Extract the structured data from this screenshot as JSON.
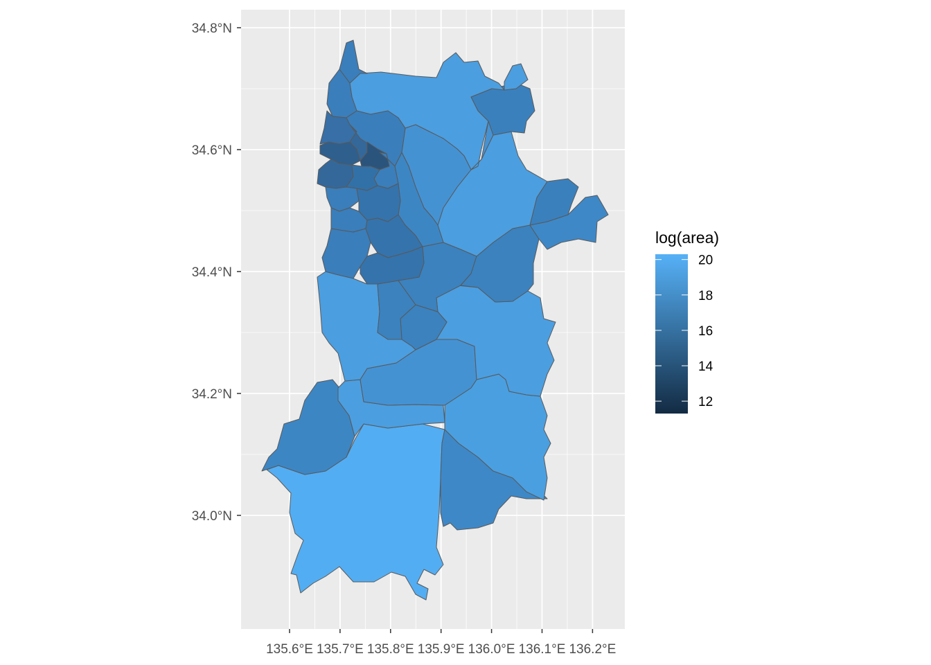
{
  "map": {
    "x_axis": {
      "ticks": [
        {
          "value": 135.6,
          "label": "135.6°E"
        },
        {
          "value": 135.7,
          "label": "135.7°E"
        },
        {
          "value": 135.8,
          "label": "135.8°E"
        },
        {
          "value": 135.9,
          "label": "135.9°E"
        },
        {
          "value": 136.0,
          "label": "136.0°E"
        },
        {
          "value": 136.1,
          "label": "136.1°E"
        },
        {
          "value": 136.2,
          "label": "136.2°E"
        }
      ]
    },
    "y_axis": {
      "ticks": [
        {
          "value": 34.0,
          "label": "34.0°N"
        },
        {
          "value": 34.2,
          "label": "34.2°N"
        },
        {
          "value": 34.4,
          "label": "34.4°N"
        },
        {
          "value": 34.6,
          "label": "34.6°N"
        },
        {
          "value": 34.8,
          "label": "34.8°N"
        }
      ]
    },
    "legend": {
      "title": "log(area)",
      "placement": "right",
      "range": [
        11.3,
        20.3
      ],
      "color_low": "#132b43",
      "color_high": "#56b1f7",
      "ticks": [
        {
          "value": 12,
          "label": "12"
        },
        {
          "value": 14,
          "label": "14"
        },
        {
          "value": 16,
          "label": "16"
        },
        {
          "value": 18,
          "label": "18"
        },
        {
          "value": 20,
          "label": "20"
        }
      ]
    },
    "panel_background": "#ebebeb",
    "grid_color": "#ffffff",
    "border_color": "#595959"
  }
}
